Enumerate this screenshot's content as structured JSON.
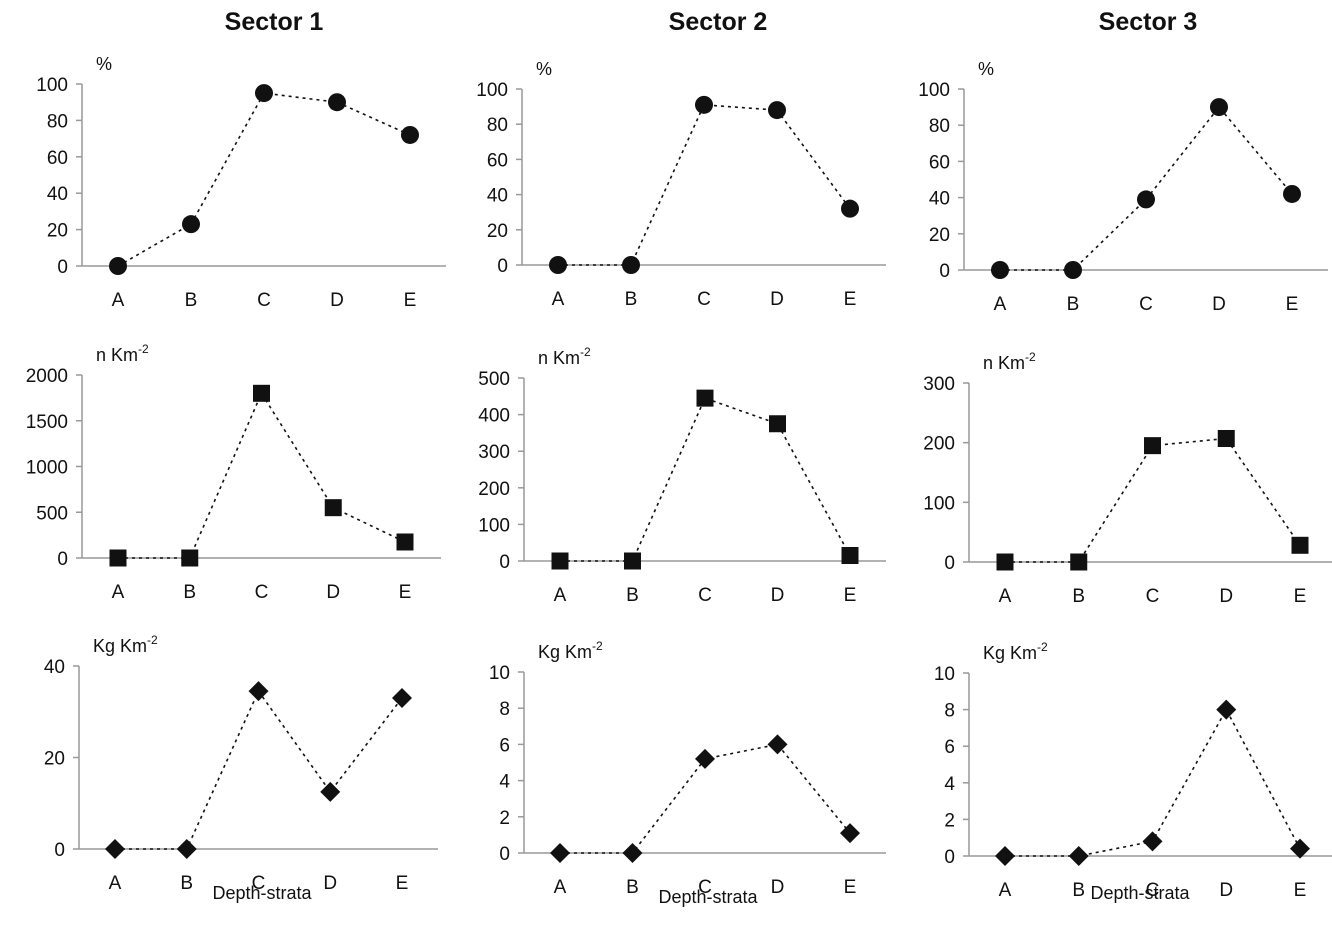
{
  "figure": {
    "sector_titles": [
      "Sector 1",
      "Sector 2",
      "Sector 3"
    ],
    "xlabel": "Depth-strata"
  },
  "chart_data": [
    {
      "type": "line",
      "sector": "Sector 1",
      "unit": "%",
      "marker": "circle",
      "categories": [
        "A",
        "B",
        "C",
        "D",
        "E"
      ],
      "values": [
        0,
        23,
        95,
        90,
        72
      ],
      "ylim": [
        0,
        100
      ],
      "yticks": [
        0,
        20,
        40,
        60,
        80,
        100
      ]
    },
    {
      "type": "line",
      "sector": "Sector 2",
      "unit": "%",
      "marker": "circle",
      "categories": [
        "A",
        "B",
        "C",
        "D",
        "E"
      ],
      "values": [
        0,
        0,
        91,
        88,
        32
      ],
      "ylim": [
        0,
        100
      ],
      "yticks": [
        0,
        20,
        40,
        60,
        80,
        100
      ]
    },
    {
      "type": "line",
      "sector": "Sector 3",
      "unit": "%",
      "marker": "circle",
      "categories": [
        "A",
        "B",
        "C",
        "D",
        "E"
      ],
      "values": [
        0,
        0,
        39,
        90,
        42
      ],
      "ylim": [
        0,
        100
      ],
      "yticks": [
        0,
        20,
        40,
        60,
        80,
        100
      ]
    },
    {
      "type": "line",
      "sector": "Sector 1",
      "unit": "n Km",
      "unit_sup": "-2",
      "marker": "square",
      "categories": [
        "A",
        "B",
        "C",
        "D",
        "E"
      ],
      "values": [
        0,
        0,
        1800,
        550,
        175
      ],
      "ylim": [
        0,
        2000
      ],
      "yticks": [
        0,
        500,
        1000,
        1500,
        2000
      ]
    },
    {
      "type": "line",
      "sector": "Sector 2",
      "unit": "n Km",
      "unit_sup": "-2",
      "marker": "square",
      "categories": [
        "A",
        "B",
        "C",
        "D",
        "E"
      ],
      "values": [
        0,
        0,
        445,
        375,
        15
      ],
      "ylim": [
        0,
        500
      ],
      "yticks": [
        0,
        100,
        200,
        300,
        400,
        500
      ]
    },
    {
      "type": "line",
      "sector": "Sector 3",
      "unit": "n Km",
      "unit_sup": "-2",
      "marker": "square",
      "categories": [
        "A",
        "B",
        "C",
        "D",
        "E"
      ],
      "values": [
        0,
        0,
        195,
        207,
        28
      ],
      "ylim": [
        0,
        300
      ],
      "yticks": [
        0,
        100,
        200,
        300
      ]
    },
    {
      "type": "line",
      "sector": "Sector 1",
      "unit": "Kg Km",
      "unit_sup": "-2",
      "marker": "diamond",
      "categories": [
        "A",
        "B",
        "C",
        "D",
        "E"
      ],
      "values": [
        0,
        0,
        34.5,
        12.5,
        33
      ],
      "ylim": [
        0,
        40
      ],
      "yticks": [
        0,
        20,
        40
      ]
    },
    {
      "type": "line",
      "sector": "Sector 2",
      "unit": "Kg Km",
      "unit_sup": "-2",
      "marker": "diamond",
      "categories": [
        "A",
        "B",
        "C",
        "D",
        "E"
      ],
      "values": [
        0,
        0,
        5.2,
        6.0,
        1.1
      ],
      "ylim": [
        0,
        10
      ],
      "yticks": [
        0,
        2,
        4,
        6,
        8,
        10
      ]
    },
    {
      "type": "line",
      "sector": "Sector 3",
      "unit": "Kg Km",
      "unit_sup": "-2",
      "marker": "diamond",
      "categories": [
        "A",
        "B",
        "C",
        "D",
        "E"
      ],
      "values": [
        0,
        0,
        0.8,
        8.0,
        0.4
      ],
      "ylim": [
        0,
        10
      ],
      "yticks": [
        0,
        2,
        4,
        6,
        8,
        10
      ]
    }
  ]
}
